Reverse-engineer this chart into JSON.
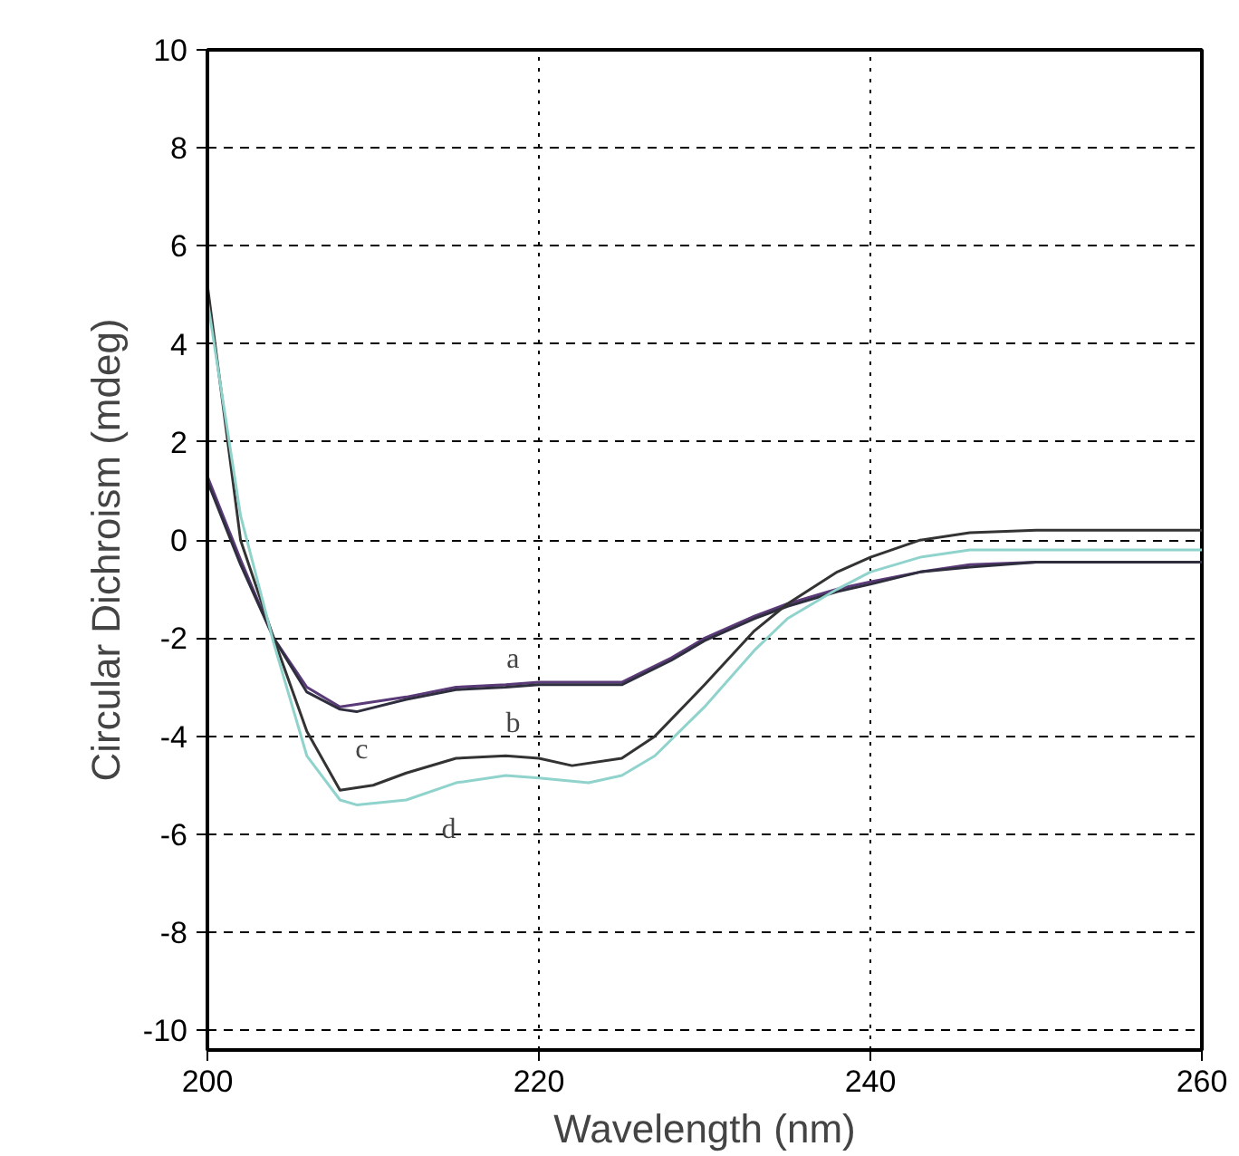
{
  "chart_data": {
    "type": "line",
    "xlabel": "Wavelength (nm)",
    "ylabel": "Circular Dichroism (mdeg)",
    "xlim": [
      200,
      260
    ],
    "ylim": [
      -10.4,
      10
    ],
    "xticks": [
      200,
      220,
      240,
      260
    ],
    "yticks": [
      -10,
      -8,
      -6,
      -4,
      -2,
      0,
      2,
      4,
      6,
      8,
      10
    ],
    "grid": true,
    "line_style": "solid",
    "series": [
      {
        "name": "a",
        "color": "#5a3a78",
        "x": [
          200,
          202,
          204,
          206,
          208,
          209,
          212,
          215,
          218,
          220,
          225,
          228,
          230,
          233,
          235,
          238,
          240,
          243,
          246,
          250,
          255,
          260
        ],
        "values": [
          1.3,
          -0.4,
          -2.0,
          -3.0,
          -3.4,
          -3.35,
          -3.2,
          -3.0,
          -2.95,
          -2.9,
          -2.9,
          -2.4,
          -2.0,
          -1.55,
          -1.3,
          -1.0,
          -0.85,
          -0.65,
          -0.5,
          -0.45,
          -0.45,
          -0.45
        ]
      },
      {
        "name": "b",
        "color": "#2e2e3e",
        "x": [
          200,
          202,
          204,
          206,
          208,
          209,
          212,
          215,
          218,
          220,
          225,
          228,
          230,
          233,
          235,
          238,
          240,
          243,
          246,
          250,
          255,
          260
        ],
        "values": [
          1.2,
          -0.5,
          -2.0,
          -3.1,
          -3.45,
          -3.5,
          -3.25,
          -3.05,
          -3.0,
          -2.95,
          -2.95,
          -2.45,
          -2.05,
          -1.6,
          -1.35,
          -1.05,
          -0.9,
          -0.65,
          -0.55,
          -0.45,
          -0.45,
          -0.45
        ]
      },
      {
        "name": "c",
        "color": "#333333",
        "x": [
          200,
          202,
          204,
          206,
          208,
          210,
          212,
          215,
          218,
          220,
          222,
          225,
          227,
          230,
          233,
          235,
          238,
          240,
          243,
          246,
          250,
          260
        ],
        "values": [
          5.2,
          0.0,
          -2.0,
          -3.9,
          -5.1,
          -5.0,
          -4.75,
          -4.45,
          -4.4,
          -4.45,
          -4.6,
          -4.45,
          -4.0,
          -2.95,
          -1.85,
          -1.3,
          -0.65,
          -0.35,
          0.0,
          0.15,
          0.2,
          0.2
        ]
      },
      {
        "name": "d",
        "color": "#8fd3cc",
        "x": [
          200,
          202,
          204,
          206,
          208,
          209,
          212,
          215,
          218,
          220,
          223,
          225,
          227,
          230,
          233,
          235,
          238,
          240,
          243,
          246,
          250,
          260
        ],
        "values": [
          4.9,
          0.5,
          -2.1,
          -4.4,
          -5.3,
          -5.4,
          -5.3,
          -4.95,
          -4.8,
          -4.85,
          -4.95,
          -4.8,
          -4.4,
          -3.4,
          -2.25,
          -1.6,
          -1.0,
          -0.65,
          -0.35,
          -0.2,
          -0.2,
          -0.2
        ]
      }
    ]
  }
}
